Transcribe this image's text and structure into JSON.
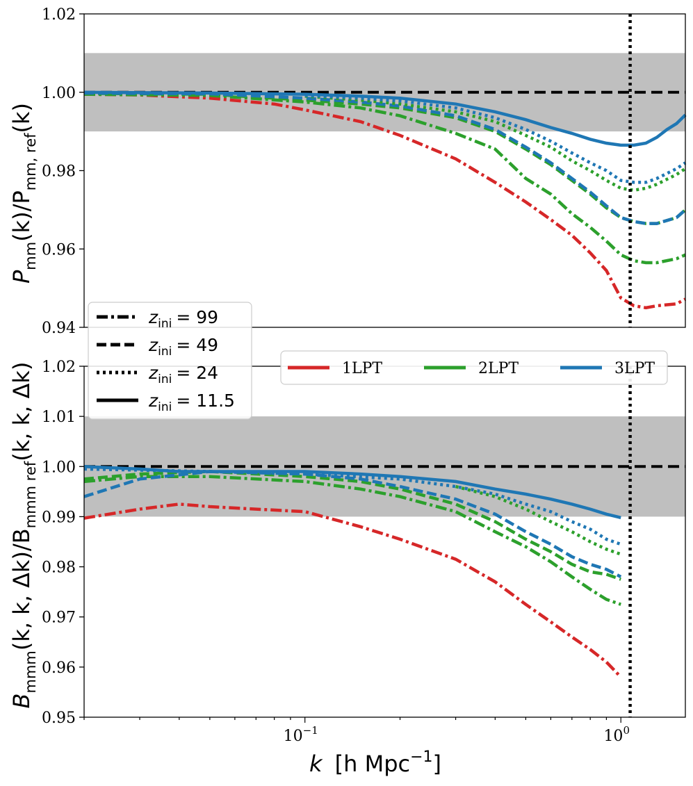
{
  "chart_data": [
    {
      "type": "line",
      "panel": "top",
      "xlabel": "k [h Mpc⁻¹]",
      "ylabel": "P_mm(k)/P_mm, ref(k)",
      "xscale": "log",
      "xlim": [
        0.02,
        1.6
      ],
      "ylim": [
        0.94,
        1.02
      ],
      "yticks": [
        "0.94",
        "0.96",
        "0.98",
        "1.00",
        "1.02"
      ],
      "band": [
        0.99,
        1.01
      ],
      "reference_line": 1.0,
      "vertical_line_x": 1.07,
      "grid": false,
      "series": [
        {
          "name": "1LPT",
          "z_ini": "99",
          "color": "#d62728",
          "style": "dashdot",
          "x": [
            0.02,
            0.03,
            0.05,
            0.08,
            0.1,
            0.15,
            0.2,
            0.3,
            0.4,
            0.5,
            0.6,
            0.7,
            0.8,
            0.9,
            1.0,
            1.1,
            1.2,
            1.3,
            1.5,
            1.6
          ],
          "y": [
            0.9995,
            0.9993,
            0.9985,
            0.997,
            0.9955,
            0.9925,
            0.989,
            0.983,
            0.977,
            0.972,
            0.9675,
            0.9635,
            0.959,
            0.9545,
            0.9475,
            0.9455,
            0.945,
            0.9455,
            0.946,
            0.9472
          ]
        },
        {
          "name": "2LPT",
          "z_ini": "99",
          "color": "#2ca02c",
          "style": "dashdot",
          "x": [
            0.02,
            0.05,
            0.1,
            0.15,
            0.2,
            0.3,
            0.4,
            0.5,
            0.6,
            0.7,
            0.8,
            0.9,
            1.0,
            1.1,
            1.2,
            1.3,
            1.5,
            1.6
          ],
          "y": [
            0.9995,
            0.9992,
            0.9975,
            0.996,
            0.994,
            0.9895,
            0.9855,
            0.978,
            0.974,
            0.969,
            0.9655,
            0.962,
            0.9585,
            0.957,
            0.9565,
            0.9565,
            0.9575,
            0.9585
          ]
        },
        {
          "name": "2LPT",
          "z_ini": "49",
          "color": "#2ca02c",
          "style": "dashed",
          "x": [
            0.02,
            0.05,
            0.1,
            0.15,
            0.2,
            0.3,
            0.4,
            0.5,
            0.6,
            0.7,
            0.8,
            0.9,
            1.0,
            1.1,
            1.2,
            1.3,
            1.5,
            1.6
          ],
          "y": [
            0.9997,
            0.9995,
            0.998,
            0.997,
            0.996,
            0.9935,
            0.99,
            0.9855,
            0.9815,
            0.9775,
            0.974,
            0.9705,
            0.968,
            0.967,
            0.9665,
            0.9665,
            0.968,
            0.97
          ]
        },
        {
          "name": "3LPT",
          "z_ini": "49",
          "color": "#1f77b4",
          "style": "dashed",
          "x": [
            0.02,
            0.05,
            0.1,
            0.15,
            0.2,
            0.3,
            0.4,
            0.5,
            0.6,
            0.7,
            0.8,
            0.9,
            1.0,
            1.1,
            1.2,
            1.3,
            1.5,
            1.6
          ],
          "y": [
            0.9998,
            0.9996,
            0.9985,
            0.9975,
            0.9965,
            0.994,
            0.9905,
            0.986,
            0.982,
            0.978,
            0.9745,
            0.971,
            0.968,
            0.967,
            0.9665,
            0.9665,
            0.968,
            0.97
          ]
        },
        {
          "name": "2LPT",
          "z_ini": "24",
          "color": "#2ca02c",
          "style": "dotted",
          "x": [
            0.1,
            0.15,
            0.2,
            0.3,
            0.4,
            0.5,
            0.6,
            0.7,
            0.8,
            0.9,
            1.0,
            1.1,
            1.2,
            1.3,
            1.5,
            1.6
          ],
          "y": [
            0.999,
            0.998,
            0.997,
            0.995,
            0.9925,
            0.989,
            0.986,
            0.9825,
            0.98,
            0.9775,
            0.9755,
            0.975,
            0.9755,
            0.9765,
            0.979,
            0.9805
          ]
        },
        {
          "name": "3LPT",
          "z_ini": "24",
          "color": "#1f77b4",
          "style": "dotted",
          "x": [
            0.1,
            0.15,
            0.2,
            0.3,
            0.4,
            0.5,
            0.6,
            0.7,
            0.8,
            0.9,
            1.0,
            1.1,
            1.2,
            1.3,
            1.5,
            1.6
          ],
          "y": [
            0.9992,
            0.9985,
            0.9978,
            0.996,
            0.9935,
            0.9905,
            0.9875,
            0.9845,
            0.982,
            0.98,
            0.9775,
            0.977,
            0.977,
            0.978,
            0.9805,
            0.982
          ]
        },
        {
          "name": "3LPT",
          "z_ini": "11.5",
          "color": "#1f77b4",
          "style": "solid",
          "x": [
            0.02,
            0.05,
            0.1,
            0.15,
            0.2,
            0.3,
            0.4,
            0.5,
            0.6,
            0.7,
            0.8,
            0.9,
            1.0,
            1.1,
            1.2,
            1.3,
            1.4,
            1.5,
            1.6
          ],
          "y": [
            1.0,
            0.9998,
            0.9995,
            0.999,
            0.9985,
            0.997,
            0.995,
            0.993,
            0.991,
            0.9895,
            0.988,
            0.987,
            0.9865,
            0.9865,
            0.987,
            0.9885,
            0.9905,
            0.992,
            0.9942
          ]
        }
      ]
    },
    {
      "type": "line",
      "panel": "bottom",
      "xlabel": "k [h Mpc⁻¹]",
      "ylabel": "B_mmm(k,k,Δk)/B_mmm ref(k,k,Δk)",
      "xscale": "log",
      "xlim": [
        0.02,
        1.6
      ],
      "ylim": [
        0.95,
        1.02
      ],
      "yticks": [
        "0.95",
        "0.96",
        "0.97",
        "0.98",
        "0.99",
        "1.00",
        "1.01",
        "1.02"
      ],
      "xticks": [
        {
          "value": 0.1,
          "label": "10",
          "exp": "−1"
        },
        {
          "value": 1.0,
          "label": "10",
          "exp": "0"
        }
      ],
      "band": [
        0.99,
        1.01
      ],
      "reference_line": 1.0,
      "vertical_line_x": 1.07,
      "grid": false,
      "series": [
        {
          "name": "1LPT",
          "z_ini": "99",
          "color": "#d62728",
          "style": "dashdot",
          "x": [
            0.02,
            0.03,
            0.04,
            0.05,
            0.07,
            0.1,
            0.15,
            0.2,
            0.3,
            0.4,
            0.5,
            0.6,
            0.7,
            0.8,
            0.9,
            1.0
          ],
          "y": [
            0.9897,
            0.9915,
            0.9925,
            0.992,
            0.9915,
            0.991,
            0.988,
            0.9855,
            0.9815,
            0.977,
            0.9725,
            0.969,
            0.966,
            0.9635,
            0.961,
            0.958
          ]
        },
        {
          "name": "2LPT",
          "z_ini": "99",
          "color": "#2ca02c",
          "style": "dashdot",
          "x": [
            0.02,
            0.03,
            0.05,
            0.1,
            0.15,
            0.2,
            0.3,
            0.4,
            0.5,
            0.6,
            0.7,
            0.8,
            0.9,
            1.0
          ],
          "y": [
            0.997,
            0.998,
            0.998,
            0.997,
            0.9955,
            0.994,
            0.991,
            0.987,
            0.984,
            0.981,
            0.978,
            0.9755,
            0.9735,
            0.9725
          ]
        },
        {
          "name": "2LPT",
          "z_ini": "49",
          "color": "#2ca02c",
          "style": "dashed",
          "x": [
            0.02,
            0.03,
            0.05,
            0.1,
            0.15,
            0.2,
            0.3,
            0.4,
            0.5,
            0.6,
            0.7,
            0.8,
            0.9,
            1.0
          ],
          "y": [
            0.9975,
            0.9985,
            0.999,
            0.998,
            0.997,
            0.9955,
            0.9925,
            0.989,
            0.9855,
            0.983,
            0.9805,
            0.979,
            0.9785,
            0.9775
          ]
        },
        {
          "name": "3LPT",
          "z_ini": "49",
          "color": "#1f77b4",
          "style": "dashed",
          "x": [
            0.02,
            0.03,
            0.05,
            0.1,
            0.15,
            0.2,
            0.3,
            0.4,
            0.5,
            0.6,
            0.7,
            0.8,
            0.9,
            1.0
          ],
          "y": [
            0.994,
            0.9975,
            0.999,
            0.9985,
            0.9975,
            0.996,
            0.9935,
            0.9905,
            0.987,
            0.9845,
            0.982,
            0.9805,
            0.9795,
            0.978
          ]
        },
        {
          "name": "2LPT",
          "z_ini": "24",
          "color": "#2ca02c",
          "style": "dotted",
          "x": [
            0.3,
            0.4,
            0.5,
            0.6,
            0.7,
            0.8,
            0.9,
            1.0
          ],
          "y": [
            0.996,
            0.994,
            0.9915,
            0.989,
            0.987,
            0.985,
            0.9835,
            0.9825
          ]
        },
        {
          "name": "3LPT",
          "z_ini": "24",
          "color": "#1f77b4",
          "style": "dotted",
          "x": [
            0.02,
            0.05,
            0.1,
            0.2,
            0.3,
            0.4,
            0.5,
            0.6,
            0.7,
            0.8,
            0.9,
            1.0
          ],
          "y": [
            0.9995,
            0.999,
            0.9985,
            0.9975,
            0.996,
            0.9945,
            0.9925,
            0.991,
            0.989,
            0.9875,
            0.9855,
            0.9845
          ]
        },
        {
          "name": "3LPT",
          "z_ini": "11.5",
          "color": "#1f77b4",
          "style": "solid",
          "x": [
            0.02,
            0.03,
            0.04,
            0.05,
            0.07,
            0.1,
            0.15,
            0.2,
            0.3,
            0.4,
            0.5,
            0.6,
            0.7,
            0.8,
            0.9,
            1.0
          ],
          "y": [
            1.0,
            0.9995,
            0.999,
            0.999,
            0.999,
            0.999,
            0.9985,
            0.998,
            0.997,
            0.9955,
            0.9945,
            0.9935,
            0.9925,
            0.9915,
            0.9905,
            0.9898
          ]
        }
      ]
    }
  ],
  "legends": {
    "style": {
      "entries": [
        {
          "style": "dashdot",
          "prefix": "z",
          "sub": "ini",
          "value": "= 99"
        },
        {
          "style": "dashed",
          "prefix": "z",
          "sub": "ini",
          "value": "= 49"
        },
        {
          "style": "dotted",
          "prefix": "z",
          "sub": "ini",
          "value": "= 24"
        },
        {
          "style": "solid",
          "prefix": "z",
          "sub": "ini",
          "value": "= 11.5"
        }
      ]
    },
    "color": {
      "entries": [
        {
          "label": "1LPT",
          "color": "#d62728"
        },
        {
          "label": "2LPT",
          "color": "#2ca02c"
        },
        {
          "label": "3LPT",
          "color": "#1f77b4"
        }
      ]
    }
  },
  "labels": {
    "x_axis": {
      "k": "k",
      "unit": "[h Mpc",
      "exp": "−1",
      "close": "]"
    },
    "top_y": {
      "main": "P",
      "sub": "mm",
      "mid": "(k)/P",
      "sub2": "mm, ref",
      "end": "(k)"
    },
    "bottom_y": {
      "main": "B",
      "sub": "mmm",
      "mid": "(k, k, Δk)/B",
      "sub2": "mmm ref",
      "end": "(k, k, Δk)"
    }
  },
  "colors": {
    "band": "#bfbfbf",
    "ref_line": "#000000",
    "axis": "#000000"
  }
}
